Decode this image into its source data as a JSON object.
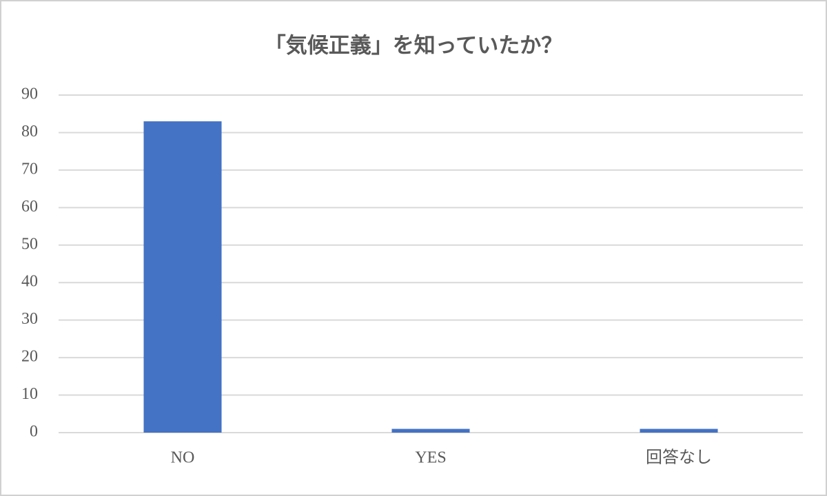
{
  "chart_data": {
    "type": "bar",
    "title": "「気候正義」を知っていたか？",
    "categories": [
      "NO",
      "YES",
      "回答なし"
    ],
    "values": [
      83,
      1,
      1
    ],
    "color": "#4472c4",
    "ylim": [
      0,
      90
    ],
    "yticks": [
      0,
      10,
      20,
      30,
      40,
      50,
      60,
      70,
      80,
      90
    ],
    "grid": true
  }
}
